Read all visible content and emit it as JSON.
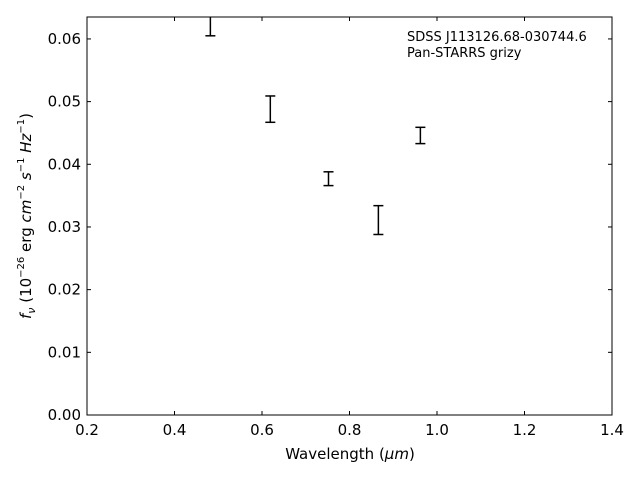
{
  "chart_data": {
    "type": "scatter",
    "style": "errorbar",
    "annotation_lines": [
      "SDSS J113126.68-030744.6",
      "Pan-STARRS grizy"
    ],
    "xlabel": {
      "pre": "Wavelength (",
      "math": "μm",
      "post": ")"
    },
    "ylabel": {
      "f": "f",
      "sub": "ν",
      "scale_pre": "(10",
      "scale_exp": "−26",
      "unit_erg": "erg",
      "cm": "cm",
      "cm_exp": "−2",
      "s": "s",
      "s_exp": "−1",
      "hz": "Hz",
      "hz_exp": "−1",
      "close": ")"
    },
    "xlim": [
      0.2,
      1.4
    ],
    "ylim": [
      0.0,
      0.0635
    ],
    "xticks": [
      0.2,
      0.4,
      0.6,
      0.8,
      1.0,
      1.2,
      1.4
    ],
    "xtick_labels": [
      "0.2",
      "0.4",
      "0.6",
      "0.8",
      "1.0",
      "1.2",
      "1.4"
    ],
    "yticks": [
      0.0,
      0.01,
      0.02,
      0.03,
      0.04,
      0.05,
      0.06
    ],
    "ytick_labels": [
      "0.00",
      "0.01",
      "0.02",
      "0.03",
      "0.04",
      "0.05",
      "0.06"
    ],
    "grid": false,
    "points": [
      {
        "x": 0.482,
        "y": 0.0625,
        "yerr": 0.002
      },
      {
        "x": 0.619,
        "y": 0.0488,
        "yerr": 0.0021
      },
      {
        "x": 0.752,
        "y": 0.0377,
        "yerr": 0.0011
      },
      {
        "x": 0.866,
        "y": 0.0311,
        "yerr": 0.0023
      },
      {
        "x": 0.962,
        "y": 0.0446,
        "yerr": 0.0013
      }
    ],
    "color": "#000000"
  }
}
